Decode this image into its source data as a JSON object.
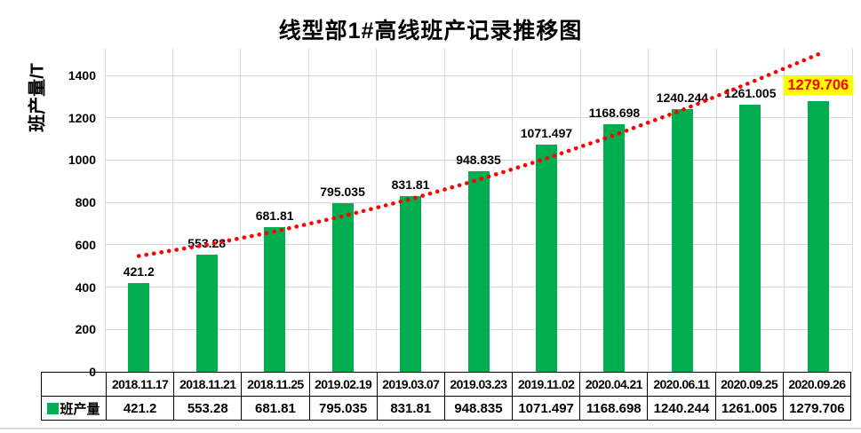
{
  "header": {
    "title": "线型部1#高线班产记录推移图"
  },
  "chart_data": {
    "type": "bar",
    "title": "线型部1#高线班产记录推移图",
    "ylabel": "班产量/T",
    "xlabel": "",
    "categories": [
      "2018.11.17",
      "2018.11.21",
      "2018.11.25",
      "2019.02.19",
      "2019.03.07",
      "2019.03.23",
      "2019.11.02",
      "2020.04.21",
      "2020.06.11",
      "2020.09.25",
      "2020.09.26"
    ],
    "series": [
      {
        "name": "班产量",
        "values": [
          421.2,
          553.28,
          681.81,
          795.035,
          831.81,
          948.835,
          1071.497,
          1168.698,
          1240.244,
          1261.005,
          1279.706
        ],
        "labels": [
          "421.2",
          "553.28",
          "681.81",
          "795.035",
          "831.81",
          "948.835",
          "1071.497",
          "1168.698",
          "1240.244",
          "1261.005",
          "1279.706"
        ]
      }
    ],
    "yticks": [
      0,
      200,
      400,
      600,
      800,
      1000,
      1200,
      1400
    ],
    "ylim": [
      0,
      1526
    ],
    "grid": "horizontal-and-vertical",
    "legend_position": "table-bottom-left",
    "highlight": {
      "index": 10,
      "bg": "#FFFF00",
      "color": "#FF0000"
    },
    "trendline": {
      "style": "dotted",
      "color": "#FF0000",
      "values": [
        547,
        600,
        663,
        735,
        816,
        907,
        1008,
        1118,
        1237,
        1366,
        1500
      ]
    },
    "colors": {
      "bar": "#00AE50",
      "trend": "#FF0000",
      "gridline": "#D9D9D9",
      "label": "#000000"
    }
  },
  "table": {
    "legend_label": "班产量",
    "legend_color": "#00AE50",
    "dates": [
      "2018.11.17",
      "2018.11.21",
      "2018.11.25",
      "2019.02.19",
      "2019.03.07",
      "2019.03.23",
      "2019.11.02",
      "2020.04.21",
      "2020.06.11",
      "2020.09.25",
      "2020.09.26"
    ],
    "values": [
      "421.2",
      "553.28",
      "681.81",
      "795.035",
      "831.81",
      "948.835",
      "1071.497",
      "1168.698",
      "1240.244",
      "1261.005",
      "1279.706"
    ]
  }
}
